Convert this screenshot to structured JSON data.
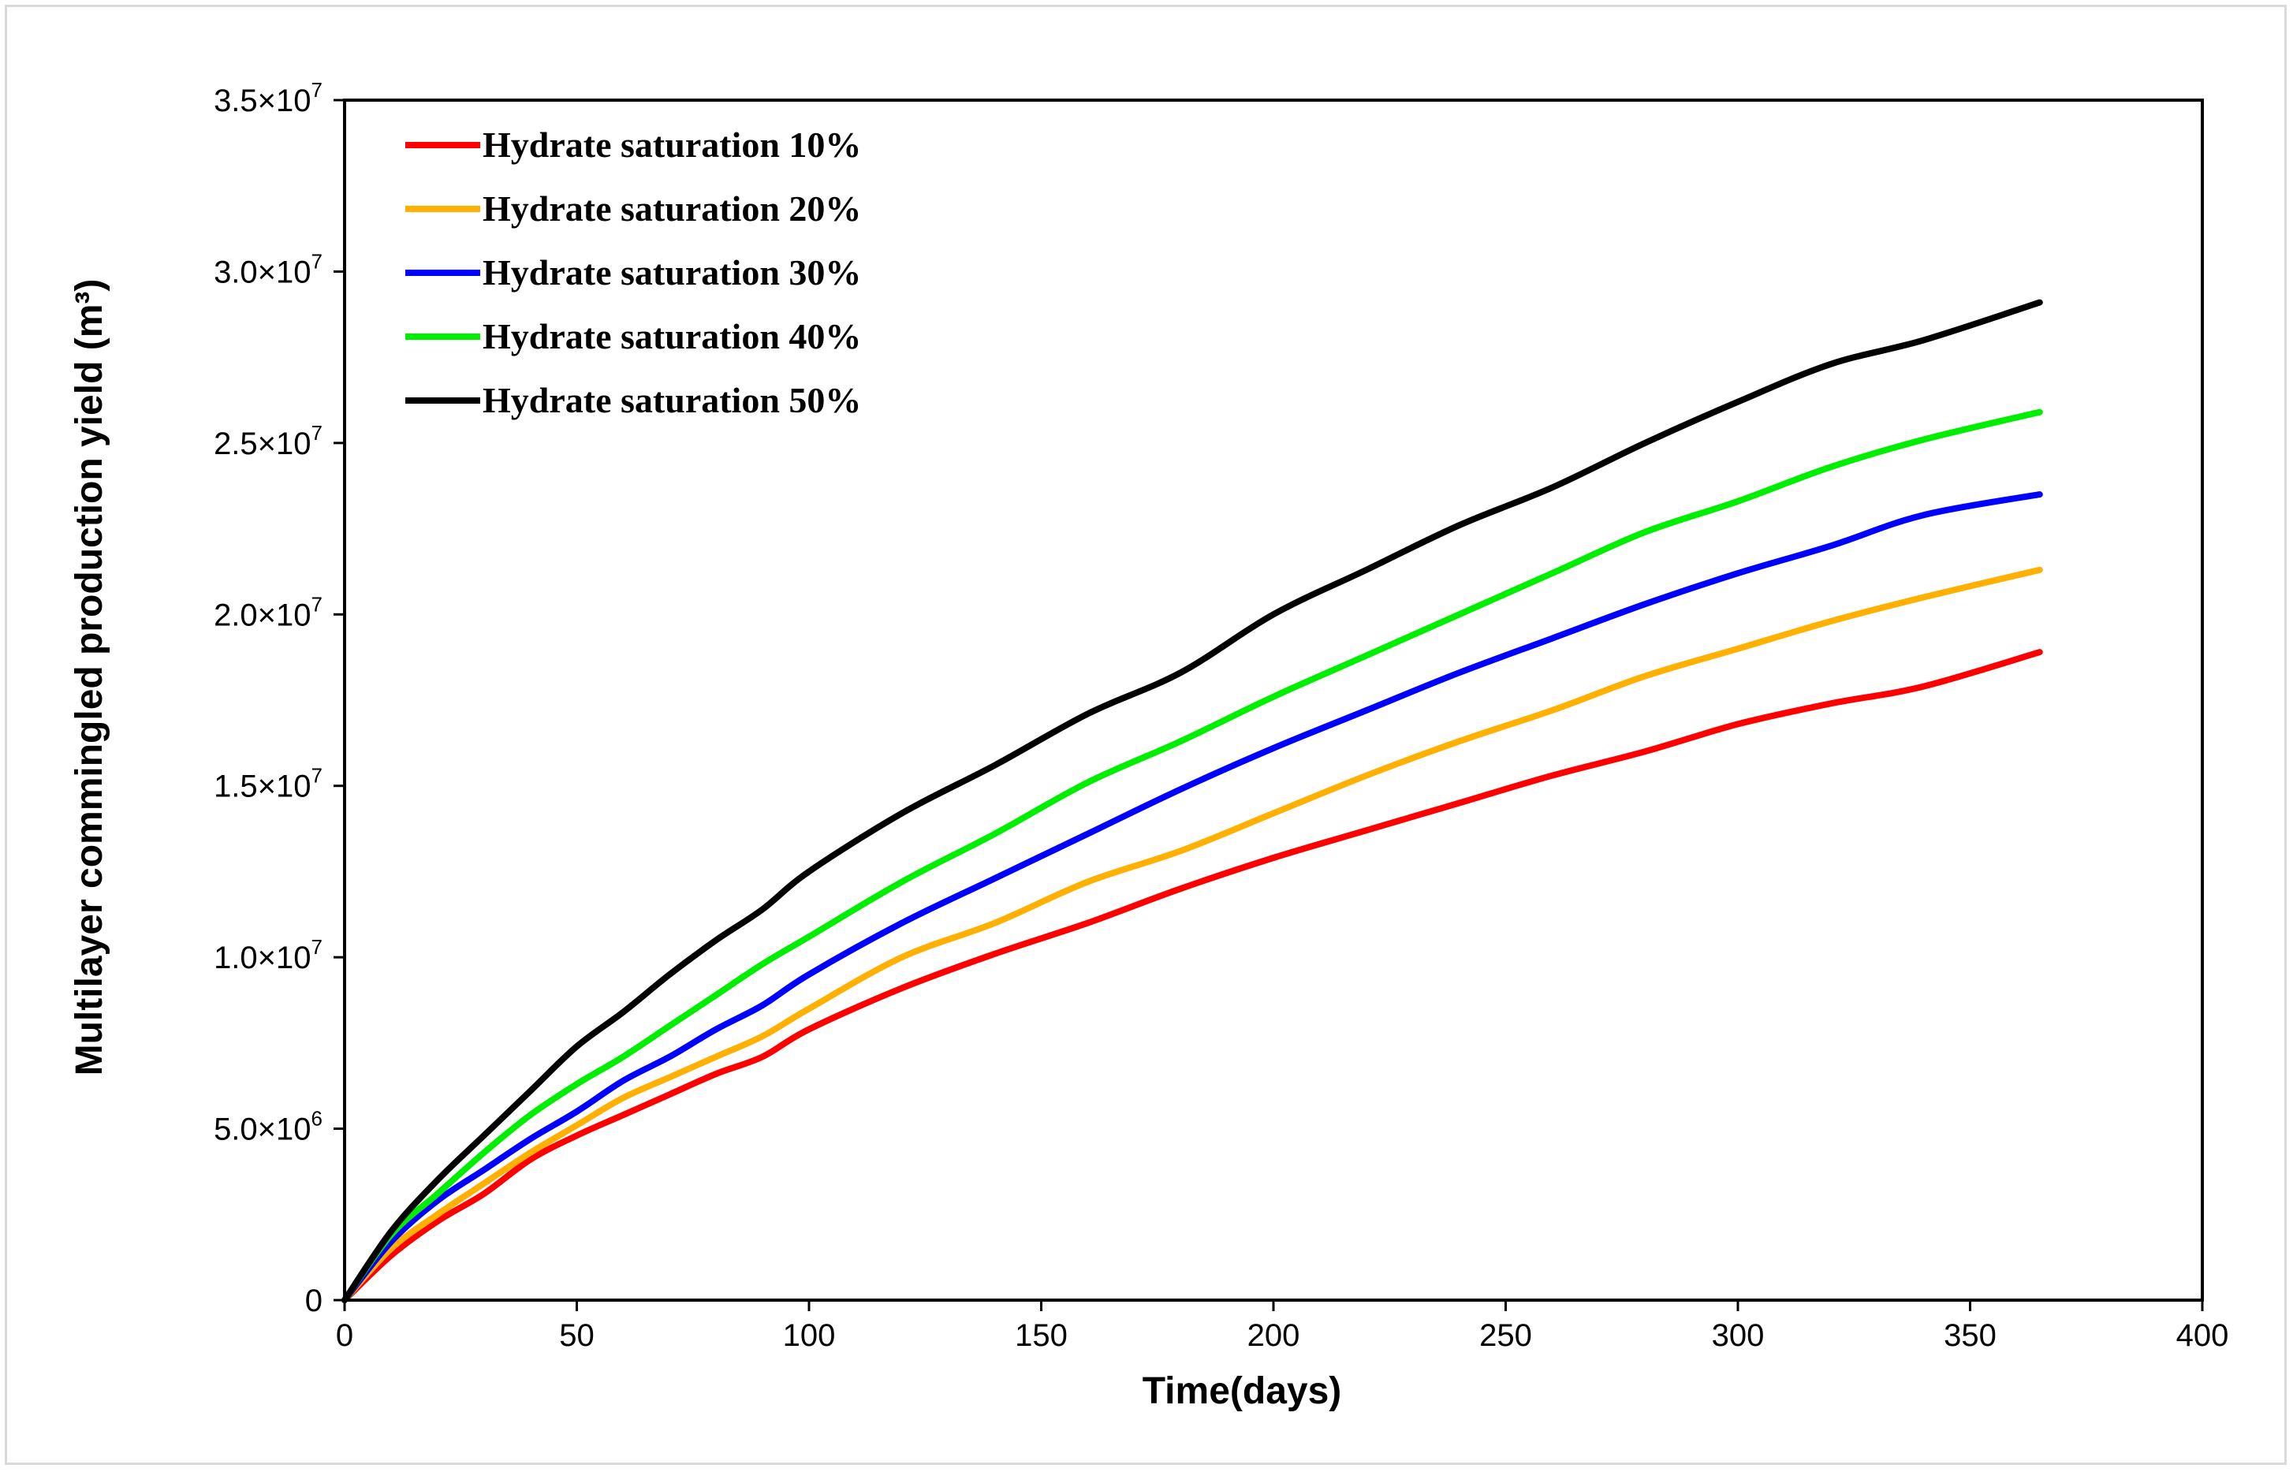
{
  "chart_data": {
    "type": "line",
    "title": "",
    "xlabel": "Time(days)",
    "ylabel": "Multilayer commingled production yield (m³)",
    "xlim": [
      0,
      400
    ],
    "ylim": [
      0,
      35000000
    ],
    "grid": false,
    "legend_position": "top-left",
    "x_ticks": [
      {
        "value": 0,
        "label": "0"
      },
      {
        "value": 50,
        "label": "50"
      },
      {
        "value": 100,
        "label": "100"
      },
      {
        "value": 150,
        "label": "150"
      },
      {
        "value": 200,
        "label": "200"
      },
      {
        "value": 250,
        "label": "250"
      },
      {
        "value": 300,
        "label": "300"
      },
      {
        "value": 350,
        "label": "350"
      },
      {
        "value": 400,
        "label": "400"
      }
    ],
    "y_ticks": [
      {
        "value": 0,
        "mantissa": "0",
        "exp": ""
      },
      {
        "value": 5000000,
        "mantissa": "5.0×10",
        "exp": "6"
      },
      {
        "value": 10000000,
        "mantissa": "1.0×10",
        "exp": "7"
      },
      {
        "value": 15000000,
        "mantissa": "1.5×10",
        "exp": "7"
      },
      {
        "value": 20000000,
        "mantissa": "2.0×10",
        "exp": "7"
      },
      {
        "value": 25000000,
        "mantissa": "2.5×10",
        "exp": "7"
      },
      {
        "value": 30000000,
        "mantissa": "3.0×10",
        "exp": "7"
      },
      {
        "value": 35000000,
        "mantissa": "3.5×10",
        "exp": "7"
      }
    ],
    "x": [
      0,
      10,
      20,
      30,
      40,
      50,
      60,
      70,
      80,
      90,
      100,
      120,
      140,
      160,
      180,
      200,
      220,
      240,
      260,
      280,
      300,
      320,
      340,
      365
    ],
    "series": [
      {
        "name": "Hydrate saturation 10%",
        "color": "#ff0000",
        "values": [
          0,
          1300000,
          2300000,
          3100000,
          4100000,
          4800000,
          5400000,
          6000000,
          6600000,
          7100000,
          7900000,
          9100000,
          10100000,
          11000000,
          12000000,
          12900000,
          13700000,
          14500000,
          15300000,
          16000000,
          16800000,
          17400000,
          17900000,
          18900000
        ]
      },
      {
        "name": "Hydrate saturation 20%",
        "color": "#ffb000",
        "values": [
          0,
          1500000,
          2500000,
          3400000,
          4300000,
          5100000,
          5900000,
          6500000,
          7100000,
          7700000,
          8500000,
          10000000,
          11000000,
          12200000,
          13100000,
          14200000,
          15300000,
          16300000,
          17200000,
          18200000,
          19000000,
          19800000,
          20500000,
          21300000
        ]
      },
      {
        "name": "Hydrate saturation 30%",
        "color": "#0000ff",
        "values": [
          0,
          1700000,
          2900000,
          3800000,
          4700000,
          5500000,
          6400000,
          7100000,
          7900000,
          8600000,
          9500000,
          11000000,
          12300000,
          13600000,
          14900000,
          16100000,
          17200000,
          18300000,
          19300000,
          20300000,
          21200000,
          22000000,
          22900000,
          23500000
        ]
      },
      {
        "name": "Hydrate saturation 40%",
        "color": "#00ee00",
        "values": [
          0,
          1900000,
          3100000,
          4300000,
          5400000,
          6300000,
          7100000,
          8000000,
          8900000,
          9800000,
          10600000,
          12200000,
          13600000,
          15100000,
          16300000,
          17600000,
          18800000,
          20000000,
          21200000,
          22400000,
          23300000,
          24300000,
          25100000,
          25900000
        ]
      },
      {
        "name": "Hydrate saturation 50%",
        "color": "#000000",
        "values": [
          0,
          2000000,
          3500000,
          4800000,
          6100000,
          7400000,
          8400000,
          9500000,
          10500000,
          11400000,
          12500000,
          14200000,
          15600000,
          17100000,
          18300000,
          20000000,
          21300000,
          22600000,
          23700000,
          25000000,
          26200000,
          27300000,
          28000000,
          29100000
        ]
      }
    ]
  }
}
